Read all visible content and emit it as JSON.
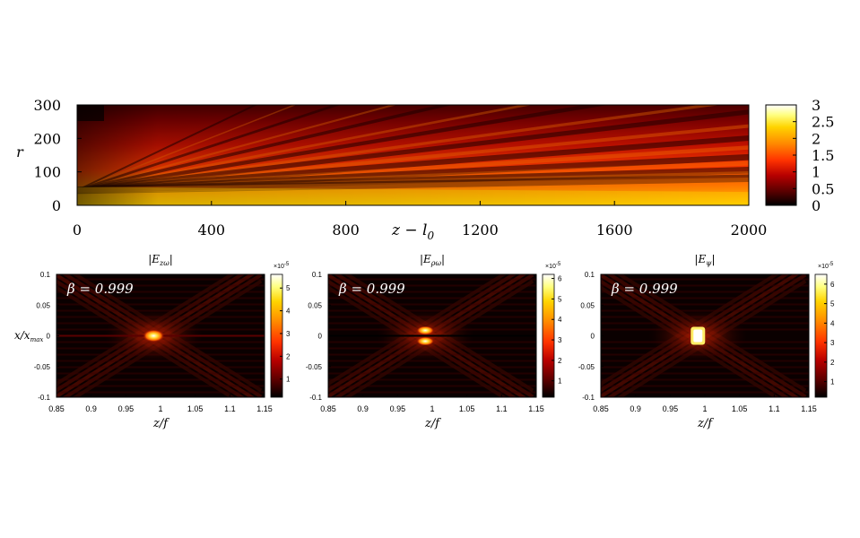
{
  "colors": {
    "colormap": [
      "#000000",
      "#5a0000",
      "#b80000",
      "#ff3300",
      "#ff8c00",
      "#ffd400",
      "#ffff80",
      "#ffffff"
    ]
  },
  "chart_data": [
    {
      "type": "heatmap",
      "title": "",
      "xlabel": "z − l",
      "xlabel_sub": "0",
      "ylabel": "r",
      "xlim": [
        0,
        2000
      ],
      "ylim": [
        0,
        300
      ],
      "xticks": [
        "0",
        "400",
        "800",
        "1200",
        "1600",
        "2000"
      ],
      "yticks": [
        "0",
        "100",
        "200",
        "300"
      ],
      "colorbar": {
        "range": [
          0,
          3
        ],
        "ticks": [
          "0",
          "0.5",
          "1",
          "1.5",
          "2",
          "2.5",
          "3"
        ]
      }
    },
    {
      "type": "heatmap",
      "title": "|E",
      "title_sub": "zω",
      "title_close": "|",
      "annotation": "β = 0.999",
      "xlabel": "z/f",
      "ylabel": "x/x",
      "ylabel_sub": "max",
      "xlim": [
        0.85,
        1.15
      ],
      "ylim": [
        -0.1,
        0.1
      ],
      "xticks": [
        "0.85",
        "0.9",
        "0.95",
        "1",
        "1.05",
        "1.1",
        "1.15"
      ],
      "yticks": [
        "-0.1",
        "-0.05",
        "0",
        "0.05",
        "0.1"
      ],
      "colorbar": {
        "exponent": "×10",
        "exponent_sup": "-5",
        "range": [
          0.2,
          5.6
        ],
        "ticks": [
          "1",
          "2",
          "3",
          "4",
          "5"
        ]
      }
    },
    {
      "type": "heatmap",
      "title": "|E",
      "title_sub": "ρω",
      "title_close": "|",
      "annotation": "β = 0.999",
      "xlabel": "z/f",
      "xlim": [
        0.85,
        1.15
      ],
      "ylim": [
        -0.1,
        0.1
      ],
      "xticks": [
        "0.85",
        "0.9",
        "0.95",
        "1",
        "1.05",
        "1.1",
        "1.15"
      ],
      "yticks": [
        "-0.1",
        "-0.05",
        "0",
        "0.05",
        "0.1"
      ],
      "colorbar": {
        "exponent": "×10",
        "exponent_sup": "-5",
        "range": [
          0.2,
          6.2
        ],
        "ticks": [
          "1",
          "2",
          "3",
          "4",
          "5",
          "6"
        ]
      }
    },
    {
      "type": "heatmap",
      "title": "|E",
      "title_sub": "ψ",
      "title_close": "|",
      "annotation": "β = 0.999",
      "xlabel": "z/f",
      "xlim": [
        0.85,
        1.15
      ],
      "ylim": [
        -0.1,
        0.1
      ],
      "xticks": [
        "0.85",
        "0.9",
        "0.95",
        "1",
        "1.05",
        "1.1",
        "1.15"
      ],
      "yticks": [
        "-0.1",
        "-0.05",
        "0",
        "0.05",
        "0.1"
      ],
      "colorbar": {
        "exponent": "×10",
        "exponent_sup": "-5",
        "range": [
          0.2,
          6.5
        ],
        "ticks": [
          "1",
          "2",
          "3",
          "4",
          "5",
          "6"
        ]
      }
    }
  ]
}
